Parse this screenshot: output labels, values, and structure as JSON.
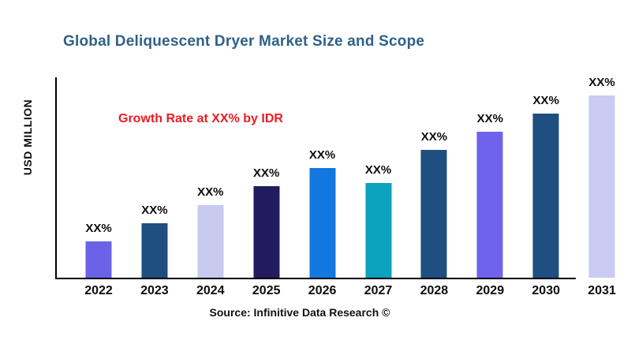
{
  "title": "Global Deliquescent Dryer Market Size and Scope",
  "annotation": "Growth Rate at XX% by IDR",
  "source": "Source: Infinitive Data Research ©",
  "colors": {
    "title": "#2E6189",
    "annotation": "#EC1C24",
    "axis": "#000000"
  },
  "chart_data": {
    "type": "bar",
    "title": "Global Deliquescent Dryer Market Size and Scope",
    "xlabel": "",
    "ylabel": "USD MILLION",
    "categories": [
      "2022",
      "2023",
      "2024",
      "2025",
      "2026",
      "2027",
      "2028",
      "2029",
      "2030",
      "2031"
    ],
    "values": [
      20,
      30,
      40,
      50,
      60,
      52,
      70,
      80,
      90,
      100
    ],
    "values_note": "relative bar heights estimated from pixels; chart shows placeholder labels instead of numbers",
    "bar_labels": [
      "XX%",
      "XX%",
      "XX%",
      "XX%",
      "XX%",
      "XX%",
      "XX%",
      "XX%",
      "XX%",
      "XX%"
    ],
    "bar_colors": [
      "#6A63E8",
      "#1F4E80",
      "#C8CAEE",
      "#221B5E",
      "#1278DF",
      "#0AA2BC",
      "#1F4E80",
      "#6F63EE",
      "#1F4E80",
      "#C9CCF0"
    ],
    "ylim": [
      0,
      100
    ],
    "grid": false,
    "legend": false,
    "annotation": "Growth Rate at XX% by IDR"
  }
}
